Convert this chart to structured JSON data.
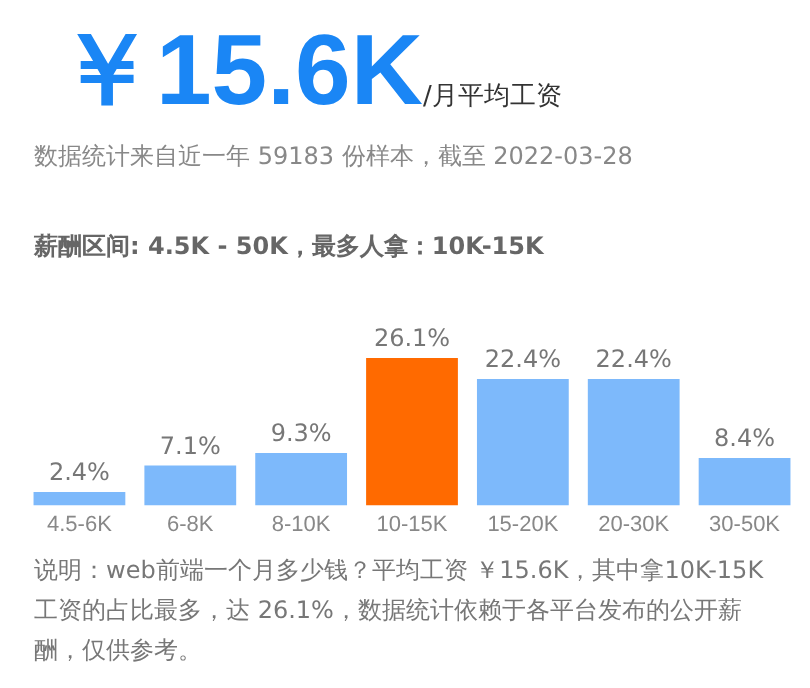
{
  "chart_data": {
    "type": "bar",
    "title": "￥15.6K",
    "subtitle": "/月平均工资",
    "annotations": [
      "数据统计来自近一年 59183 份样本，截至 2022-03-28",
      "薪酬区间: 4.5K - 50K，最多人拿：10K-15K",
      "说明：web前端一个月多少钱？平均工资 ￥15.6K，其中拿10K-15K 工资的占比最多，达 26.1%，数据统计依赖于各平台发布的公开薪酬，仅供参考。"
    ],
    "categories": [
      "4.5-6K",
      "6-8K",
      "8-10K",
      "10-15K",
      "15-20K",
      "20-30K",
      "30-50K"
    ],
    "values": [
      2.4,
      7.1,
      9.3,
      26.1,
      22.4,
      22.4,
      8.4
    ],
    "colors": [
      "#7db9fb",
      "#7db9fb",
      "#7db9fb",
      "#ff6a00",
      "#7db9fb",
      "#7db9fb",
      "#7db9fb"
    ],
    "value_labels": [
      "2.4%",
      "7.1%",
      "9.3%",
      "26.1%",
      "22.4%",
      "22.4%",
      "8.4%"
    ],
    "tick_labels": "x",
    "grid": false,
    "legend": false
  }
}
